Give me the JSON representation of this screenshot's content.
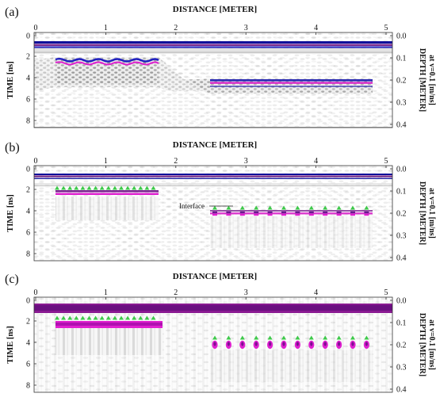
{
  "colors": {
    "interface": "#6b0f8e",
    "magenta": "#e020d0",
    "blue": "#1a1ab8",
    "green": "#3ec94a"
  },
  "panels": [
    {
      "label": "(a)",
      "xlabel": "DISTANCE [METER]",
      "ylabel": "TIME [ns]",
      "ylabel_right_line1": "DEPTH [METER]",
      "ylabel_right_line2": "at v=0.1 [m/ns]",
      "x_ticks": [
        "0",
        "1",
        "2",
        "3",
        "4",
        "5"
      ],
      "y_ticks": [
        "0",
        "2",
        "4",
        "6",
        "8"
      ],
      "right_ticks": [
        "0.0",
        "0.1",
        "0.2",
        "0.3",
        "0.4"
      ],
      "markers": false,
      "annotation": ""
    },
    {
      "label": "(b)",
      "xlabel": "DISTANCE [METER]",
      "ylabel": "TIME [ns]",
      "ylabel_right_line1": "DEPTH [METER]",
      "ylabel_right_line2": "at v=0.1 [m/ns]",
      "x_ticks": [
        "0",
        "1",
        "2",
        "3",
        "4",
        "5"
      ],
      "y_ticks": [
        "0",
        "2",
        "4",
        "6",
        "8"
      ],
      "right_ticks": [
        "0.0",
        "0.1",
        "0.2",
        "0.3",
        "0.4"
      ],
      "markers": true,
      "annotation": "Interface"
    },
    {
      "label": "(c)",
      "xlabel": "DISTANCE [METER]",
      "ylabel": "TIME [ns]",
      "ylabel_right_line1": "DEPTH [METER]",
      "ylabel_right_line2": "at v=0.1 [m/ns]",
      "x_ticks": [
        "0",
        "1",
        "2",
        "3",
        "4",
        "5"
      ],
      "y_ticks": [
        "0",
        "2",
        "4",
        "6",
        "8"
      ],
      "right_ticks": [
        "0.0",
        "0.1",
        "0.2",
        "0.3",
        "0.4"
      ],
      "markers": true,
      "annotation": ""
    }
  ]
}
